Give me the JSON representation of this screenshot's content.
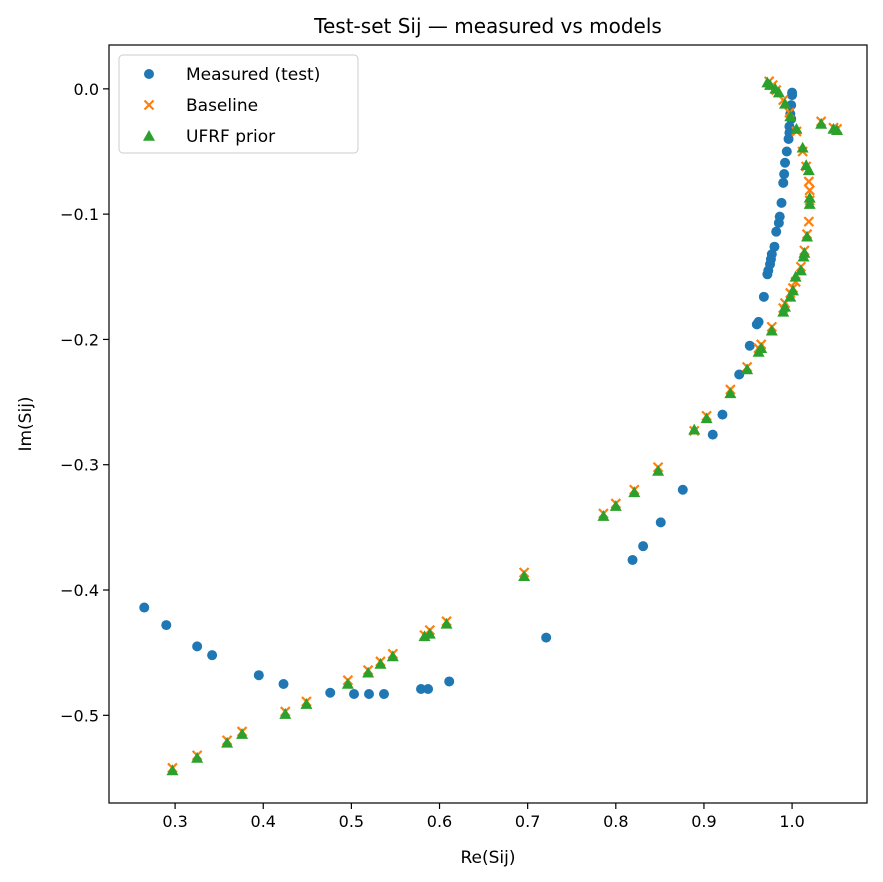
{
  "chart_data": {
    "type": "scatter",
    "title": "Test-set Sij — measured vs models",
    "xlabel": "Re(Sij)",
    "ylabel": "Im(Sij)",
    "xlim": [
      0.225,
      1.085
    ],
    "ylim": [
      -0.57,
      0.035
    ],
    "xticks": [
      0.3,
      0.4,
      0.5,
      0.6,
      0.7,
      0.8,
      0.9,
      1.0
    ],
    "xtick_labels": [
      "0.3",
      "0.4",
      "0.5",
      "0.6",
      "0.7",
      "0.8",
      "0.9",
      "1.0"
    ],
    "yticks": [
      0.0,
      -0.1,
      -0.2,
      -0.3,
      -0.4,
      -0.5
    ],
    "ytick_labels": [
      "0.0",
      "−0.1",
      "−0.2",
      "−0.3",
      "−0.4",
      "−0.5"
    ],
    "grid": false,
    "legend_position": "top-left",
    "series": [
      {
        "name": "Measured (test)",
        "marker": "circle",
        "color": "#1f77b4",
        "points": [
          [
            0.265,
            -0.414
          ],
          [
            0.29,
            -0.428
          ],
          [
            0.325,
            -0.445
          ],
          [
            0.342,
            -0.452
          ],
          [
            0.395,
            -0.468
          ],
          [
            0.423,
            -0.475
          ],
          [
            0.476,
            -0.482
          ],
          [
            0.503,
            -0.483
          ],
          [
            0.52,
            -0.483
          ],
          [
            0.537,
            -0.483
          ],
          [
            0.579,
            -0.479
          ],
          [
            0.587,
            -0.479
          ],
          [
            0.611,
            -0.473
          ],
          [
            0.721,
            -0.438
          ],
          [
            0.819,
            -0.376
          ],
          [
            0.831,
            -0.365
          ],
          [
            0.851,
            -0.346
          ],
          [
            0.876,
            -0.32
          ],
          [
            0.91,
            -0.276
          ],
          [
            0.921,
            -0.26
          ],
          [
            0.94,
            -0.228
          ],
          [
            0.952,
            -0.205
          ],
          [
            0.96,
            -0.188
          ],
          [
            0.962,
            -0.186
          ],
          [
            0.968,
            -0.166
          ],
          [
            0.972,
            -0.148
          ],
          [
            0.973,
            -0.145
          ],
          [
            0.975,
            -0.14
          ],
          [
            0.976,
            -0.136
          ],
          [
            0.977,
            -0.132
          ],
          [
            0.98,
            -0.126
          ],
          [
            0.982,
            -0.114
          ],
          [
            0.985,
            -0.107
          ],
          [
            0.986,
            -0.102
          ],
          [
            0.988,
            -0.091
          ],
          [
            0.99,
            -0.075
          ],
          [
            0.991,
            -0.068
          ],
          [
            0.992,
            -0.059
          ],
          [
            0.994,
            -0.05
          ],
          [
            0.996,
            -0.04
          ],
          [
            0.997,
            -0.03
          ],
          [
            0.998,
            -0.02
          ],
          [
            0.999,
            -0.013
          ],
          [
            1.0,
            -0.005
          ],
          [
            1.0,
            -0.003
          ],
          [
            0.999,
            -0.024
          ],
          [
            0.997,
            -0.035
          ]
        ]
      },
      {
        "name": "Baseline",
        "marker": "x",
        "color": "#ff7f0e",
        "points": [
          [
            0.297,
            -0.542
          ],
          [
            0.325,
            -0.532
          ],
          [
            0.359,
            -0.52
          ],
          [
            0.376,
            -0.513
          ],
          [
            0.425,
            -0.497
          ],
          [
            0.449,
            -0.489
          ],
          [
            0.496,
            -0.472
          ],
          [
            0.519,
            -0.464
          ],
          [
            0.533,
            -0.457
          ],
          [
            0.547,
            -0.451
          ],
          [
            0.583,
            -0.436
          ],
          [
            0.589,
            -0.432
          ],
          [
            0.608,
            -0.425
          ],
          [
            0.696,
            -0.386
          ],
          [
            0.786,
            -0.339
          ],
          [
            0.8,
            -0.331
          ],
          [
            0.821,
            -0.32
          ],
          [
            0.848,
            -0.302
          ],
          [
            0.889,
            -0.273
          ],
          [
            0.903,
            -0.261
          ],
          [
            0.93,
            -0.24
          ],
          [
            0.949,
            -0.222
          ],
          [
            0.962,
            -0.207
          ],
          [
            0.965,
            -0.204
          ],
          [
            0.977,
            -0.19
          ],
          [
            0.99,
            -0.175
          ],
          [
            0.992,
            -0.171
          ],
          [
            0.998,
            -0.163
          ],
          [
            1.001,
            -0.159
          ],
          [
            1.004,
            -0.154
          ],
          [
            1.01,
            -0.142
          ],
          [
            1.014,
            -0.129
          ],
          [
            1.017,
            -0.116
          ],
          [
            1.019,
            -0.106
          ],
          [
            1.02,
            -0.089
          ],
          [
            1.02,
            -0.081
          ],
          [
            1.019,
            -0.074
          ],
          [
            1.016,
            -0.062
          ],
          [
            1.012,
            -0.05
          ],
          [
            1.005,
            -0.034
          ],
          [
            0.997,
            -0.019
          ],
          [
            0.99,
            -0.009
          ],
          [
            0.982,
            -0.001
          ],
          [
            0.978,
            0.003
          ],
          [
            0.974,
            0.006
          ],
          [
            1.033,
            -0.026
          ],
          [
            1.047,
            -0.031
          ],
          [
            1.051,
            -0.032
          ]
        ]
      },
      {
        "name": "UFRF prior",
        "marker": "triangle",
        "color": "#2ca02c",
        "points": [
          [
            0.297,
            -0.544
          ],
          [
            0.325,
            -0.534
          ],
          [
            0.359,
            -0.522
          ],
          [
            0.376,
            -0.515
          ],
          [
            0.425,
            -0.499
          ],
          [
            0.449,
            -0.491
          ],
          [
            0.496,
            -0.475
          ],
          [
            0.519,
            -0.466
          ],
          [
            0.533,
            -0.459
          ],
          [
            0.547,
            -0.453
          ],
          [
            0.583,
            -0.437
          ],
          [
            0.589,
            -0.435
          ],
          [
            0.608,
            -0.427
          ],
          [
            0.696,
            -0.389
          ],
          [
            0.786,
            -0.341
          ],
          [
            0.8,
            -0.333
          ],
          [
            0.821,
            -0.322
          ],
          [
            0.848,
            -0.305
          ],
          [
            0.889,
            -0.272
          ],
          [
            0.903,
            -0.263
          ],
          [
            0.93,
            -0.243
          ],
          [
            0.949,
            -0.224
          ],
          [
            0.962,
            -0.21
          ],
          [
            0.965,
            -0.207
          ],
          [
            0.977,
            -0.193
          ],
          [
            0.99,
            -0.178
          ],
          [
            0.992,
            -0.174
          ],
          [
            0.998,
            -0.166
          ],
          [
            1.001,
            -0.161
          ],
          [
            1.004,
            -0.15
          ],
          [
            1.01,
            -0.145
          ],
          [
            1.013,
            -0.134
          ],
          [
            1.014,
            -0.131
          ],
          [
            1.017,
            -0.118
          ],
          [
            1.02,
            -0.092
          ],
          [
            1.02,
            -0.087
          ],
          [
            1.019,
            -0.065
          ],
          [
            1.016,
            -0.061
          ],
          [
            1.012,
            -0.047
          ],
          [
            1.005,
            -0.032
          ],
          [
            0.998,
            -0.022
          ],
          [
            0.992,
            -0.012
          ],
          [
            0.985,
            -0.003
          ],
          [
            0.981,
            0.0
          ],
          [
            0.975,
            0.003
          ],
          [
            0.972,
            0.005
          ],
          [
            1.033,
            -0.028
          ],
          [
            1.047,
            -0.032
          ],
          [
            1.051,
            -0.033
          ]
        ]
      }
    ]
  }
}
